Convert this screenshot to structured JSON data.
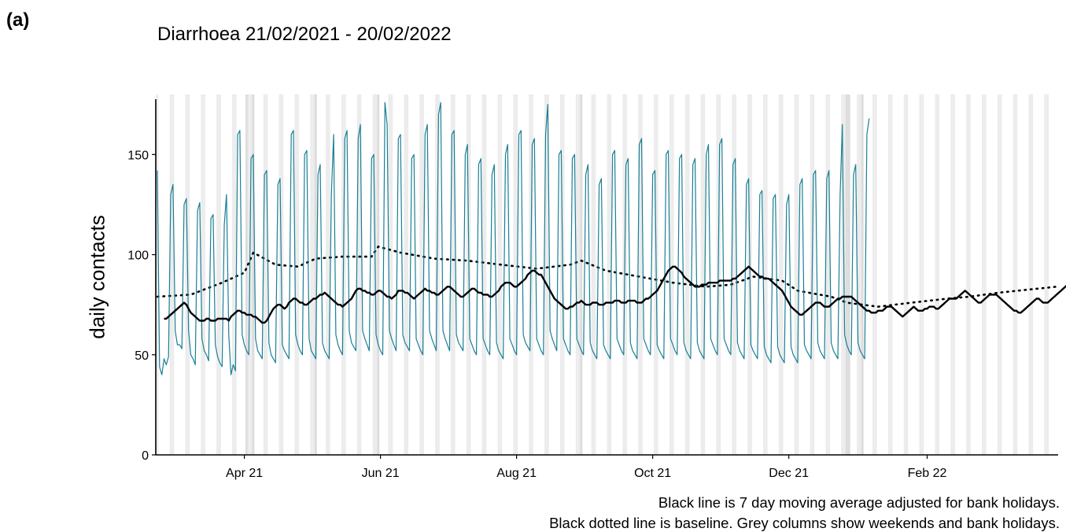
{
  "panel_label": "(a)",
  "chart_data": {
    "type": "line",
    "title": "Diarrhoea 21/02/2021 - 20/02/2022",
    "ylabel": "daily contacts",
    "xlabel": "",
    "ylim": [
      0,
      180
    ],
    "y_ticks": [
      0,
      50,
      100,
      150
    ],
    "x_range": [
      "2021-02-21",
      "2022-03-31"
    ],
    "x_ticks": [
      {
        "date": "2021-04-01",
        "label": "Apr 21"
      },
      {
        "date": "2021-06-01",
        "label": "Jun 21"
      },
      {
        "date": "2021-08-01",
        "label": "Aug 21"
      },
      {
        "date": "2021-10-01",
        "label": "Oct 21"
      },
      {
        "date": "2021-12-01",
        "label": "Dec 21"
      },
      {
        "date": "2022-02-01",
        "label": "Feb 22"
      }
    ],
    "bank_holidays": [
      "2021-04-02",
      "2021-04-05",
      "2021-05-03",
      "2021-05-31",
      "2021-08-30",
      "2021-12-27",
      "2021-12-28",
      "2022-01-03"
    ],
    "series": [
      {
        "key": "daily",
        "color": "#1a7f96",
        "start": "2021-02-21",
        "values": [
          142,
          44,
          40,
          48,
          45,
          49,
          130,
          135,
          62,
          55,
          55,
          53,
          125,
          128,
          62,
          50,
          48,
          45,
          122,
          126,
          58,
          52,
          50,
          47,
          118,
          120,
          55,
          49,
          46,
          44,
          115,
          130,
          60,
          40,
          45,
          42,
          160,
          162,
          60,
          55,
          52,
          50,
          148,
          150,
          58,
          52,
          50,
          48,
          140,
          142,
          56,
          50,
          48,
          46,
          135,
          138,
          55,
          52,
          50,
          48,
          160,
          162,
          60,
          55,
          52,
          50,
          150,
          152,
          58,
          52,
          50,
          48,
          140,
          145,
          56,
          52,
          50,
          48,
          130,
          160,
          60,
          55,
          52,
          50,
          158,
          162,
          62,
          56,
          54,
          52,
          158,
          165,
          62,
          58,
          55,
          52,
          148,
          150,
          60,
          55,
          52,
          50,
          176,
          165,
          62,
          58,
          55,
          52,
          158,
          160,
          60,
          56,
          54,
          52,
          148,
          150,
          58,
          55,
          52,
          50,
          160,
          165,
          62,
          58,
          55,
          52,
          170,
          176,
          62,
          58,
          55,
          52,
          160,
          162,
          60,
          56,
          54,
          52,
          150,
          155,
          58,
          55,
          52,
          50,
          145,
          148,
          58,
          55,
          52,
          50,
          140,
          145,
          56,
          52,
          50,
          48,
          150,
          155,
          58,
          55,
          52,
          50,
          160,
          162,
          60,
          56,
          54,
          52,
          155,
          158,
          58,
          55,
          52,
          50,
          160,
          175,
          62,
          58,
          55,
          52,
          150,
          152,
          58,
          55,
          52,
          50,
          148,
          150,
          58,
          55,
          52,
          50,
          140,
          145,
          56,
          52,
          50,
          48,
          135,
          138,
          55,
          52,
          50,
          48,
          150,
          152,
          58,
          55,
          52,
          50,
          145,
          148,
          56,
          52,
          50,
          48,
          155,
          158,
          58,
          55,
          52,
          50,
          140,
          142,
          55,
          52,
          50,
          48,
          150,
          152,
          58,
          55,
          52,
          50,
          148,
          150,
          56,
          52,
          50,
          48,
          145,
          148,
          56,
          52,
          50,
          48,
          150,
          155,
          58,
          55,
          52,
          50,
          155,
          158,
          58,
          55,
          52,
          50,
          145,
          148,
          56,
          52,
          50,
          48,
          135,
          138,
          55,
          52,
          50,
          48,
          130,
          132,
          54,
          50,
          48,
          46,
          128,
          130,
          54,
          50,
          48,
          46,
          125,
          130,
          54,
          50,
          48,
          46,
          135,
          138,
          55,
          52,
          50,
          48,
          140,
          142,
          56,
          52,
          50,
          48,
          138,
          142,
          56,
          52,
          50,
          48,
          130,
          165,
          60,
          55,
          52,
          50,
          140,
          145,
          56,
          52,
          50,
          48,
          160,
          168
        ]
      }
    ],
    "moving_average": {
      "key": "avg",
      "color": "#000000",
      "start": "2021-02-24",
      "values": [
        68,
        68,
        69,
        70,
        71,
        72,
        73,
        74,
        75,
        76,
        75,
        73,
        71,
        70,
        69,
        68,
        67,
        67,
        67,
        68,
        68,
        67,
        67,
        67,
        68,
        68,
        68,
        68,
        68,
        67,
        69,
        70,
        71,
        72,
        72,
        71,
        71,
        70,
        70,
        70,
        69,
        69,
        68,
        67,
        66,
        66,
        67,
        69,
        71,
        73,
        74,
        75,
        75,
        74,
        73,
        74,
        76,
        77,
        78,
        78,
        77,
        76,
        76,
        75,
        75,
        76,
        77,
        78,
        78,
        79,
        80,
        80,
        81,
        80,
        79,
        78,
        77,
        76,
        75,
        75,
        74,
        75,
        76,
        77,
        78,
        80,
        82,
        83,
        83,
        82,
        82,
        81,
        81,
        80,
        80,
        81,
        82,
        82,
        81,
        80,
        79,
        79,
        78,
        79,
        80,
        82,
        82,
        82,
        81,
        81,
        80,
        79,
        78,
        79,
        80,
        81,
        82,
        83,
        82,
        82,
        81,
        81,
        80,
        80,
        81,
        82,
        83,
        84,
        84,
        83,
        82,
        81,
        80,
        79,
        79,
        80,
        81,
        82,
        83,
        83,
        82,
        81,
        81,
        80,
        80,
        80,
        79,
        79,
        80,
        81,
        82,
        84,
        85,
        86,
        86,
        86,
        85,
        84,
        84,
        85,
        86,
        87,
        88,
        90,
        91,
        92,
        92,
        91,
        90,
        90,
        88,
        86,
        84,
        82,
        80,
        78,
        77,
        76,
        75,
        74,
        73,
        73,
        74,
        74,
        75,
        76,
        76,
        77,
        76,
        75,
        75,
        75,
        76,
        76,
        76,
        75,
        75,
        75,
        76,
        76,
        76,
        76,
        77,
        77,
        77,
        76,
        76,
        76,
        77,
        77,
        77,
        77,
        76,
        76,
        76,
        77,
        78,
        78,
        79,
        80,
        81,
        82,
        84,
        86,
        88,
        90,
        92,
        93,
        94,
        94,
        93,
        92,
        91,
        89,
        88,
        87,
        86,
        85,
        84,
        84,
        84,
        85,
        85,
        85,
        86,
        86,
        86,
        86,
        86,
        87,
        87,
        87,
        87,
        87,
        87,
        88,
        88,
        89,
        90,
        91,
        92,
        93,
        94,
        93,
        92,
        91,
        90,
        89,
        89,
        88,
        88,
        88,
        87,
        86,
        85,
        84,
        83,
        82,
        80,
        78,
        76,
        74,
        73,
        72,
        71,
        70,
        70,
        71,
        72,
        73,
        74,
        75,
        76,
        76,
        76,
        75,
        74,
        74,
        74,
        75,
        76,
        77,
        78,
        78,
        79,
        79,
        79,
        79,
        79,
        78,
        77,
        76,
        75,
        74,
        73,
        72,
        72,
        71,
        71,
        71,
        72,
        72,
        72,
        73,
        74,
        74,
        74,
        73,
        72,
        71,
        70,
        69,
        70,
        71,
        72,
        73,
        74,
        73,
        72,
        72,
        72,
        73,
        73,
        74,
        74,
        74,
        73,
        73,
        74,
        75,
        76,
        77,
        78,
        78,
        78,
        78,
        79,
        80,
        81,
        82,
        81,
        80,
        79,
        78,
        77,
        76,
        76,
        77,
        78,
        79,
        80,
        80,
        80,
        80,
        79,
        78,
        77,
        76,
        75,
        74,
        73,
        72,
        72,
        71,
        71,
        72,
        73,
        74,
        75,
        76,
        77,
        78,
        78,
        77,
        76,
        76,
        76,
        77,
        78,
        79,
        80,
        81,
        82,
        83,
        84,
        85,
        86,
        87,
        87,
        86,
        85,
        85,
        84,
        84,
        84,
        83,
        83,
        82,
        82,
        81,
        81,
        80,
        80,
        79,
        79,
        80,
        80,
        81,
        81,
        82,
        82,
        82,
        81,
        80,
        79,
        78,
        77,
        76,
        75,
        74,
        73,
        72,
        72,
        73,
        74,
        75,
        76,
        77,
        76,
        75,
        75,
        75,
        76,
        77,
        77,
        76,
        75,
        74,
        74,
        74,
        73,
        73,
        74,
        74,
        75,
        75,
        76,
        76,
        76,
        75,
        74,
        73,
        72,
        72,
        72,
        73,
        74,
        75,
        76,
        77,
        78,
        79,
        79,
        79,
        78,
        78,
        77,
        76,
        76,
        75,
        74,
        74,
        74,
        73,
        73,
        72,
        71,
        70,
        69,
        68,
        68,
        68,
        68,
        67,
        67,
        67,
        68,
        68,
        68,
        69,
        69,
        70,
        70,
        70,
        70,
        71,
        71,
        71,
        71,
        71,
        71,
        71,
        70,
        70,
        70,
        70,
        70,
        70,
        70,
        69,
        68,
        68,
        68,
        69,
        70,
        71,
        72,
        73,
        73,
        74,
        74,
        74,
        74,
        74,
        75,
        76,
        77,
        78,
        78,
        79,
        80,
        81,
        82,
        83,
        83,
        82,
        81,
        80,
        79,
        78,
        77,
        76,
        75,
        74,
        73,
        72,
        71,
        71,
        72,
        73,
        74,
        75,
        78
      ]
    },
    "baseline": {
      "key": "baseline",
      "color": "#000000",
      "style": "dotted",
      "start": "2021-02-21",
      "end": "2022-03-31",
      "points": [
        {
          "date": "2021-02-21",
          "value": 79
        },
        {
          "date": "2021-03-08",
          "value": 80
        },
        {
          "date": "2021-03-22",
          "value": 86
        },
        {
          "date": "2021-04-01",
          "value": 91
        },
        {
          "date": "2021-04-05",
          "value": 101
        },
        {
          "date": "2021-04-15",
          "value": 95
        },
        {
          "date": "2021-04-25",
          "value": 94
        },
        {
          "date": "2021-05-03",
          "value": 98
        },
        {
          "date": "2021-05-15",
          "value": 99
        },
        {
          "date": "2021-05-28",
          "value": 99
        },
        {
          "date": "2021-05-31",
          "value": 104
        },
        {
          "date": "2021-06-10",
          "value": 101
        },
        {
          "date": "2021-06-25",
          "value": 98
        },
        {
          "date": "2021-07-10",
          "value": 97
        },
        {
          "date": "2021-07-25",
          "value": 95
        },
        {
          "date": "2021-08-10",
          "value": 93
        },
        {
          "date": "2021-08-25",
          "value": 95
        },
        {
          "date": "2021-08-30",
          "value": 97
        },
        {
          "date": "2021-09-10",
          "value": 92
        },
        {
          "date": "2021-09-25",
          "value": 89
        },
        {
          "date": "2021-10-10",
          "value": 86
        },
        {
          "date": "2021-10-25",
          "value": 84
        },
        {
          "date": "2021-11-05",
          "value": 85
        },
        {
          "date": "2021-11-15",
          "value": 89
        },
        {
          "date": "2021-11-28",
          "value": 87
        },
        {
          "date": "2021-12-05",
          "value": 82
        },
        {
          "date": "2021-12-20",
          "value": 79
        },
        {
          "date": "2021-12-27",
          "value": 76
        },
        {
          "date": "2022-01-10",
          "value": 74
        },
        {
          "date": "2022-01-25",
          "value": 76
        },
        {
          "date": "2022-02-10",
          "value": 78
        },
        {
          "date": "2022-02-20",
          "value": 79
        },
        {
          "date": "2022-03-05",
          "value": 81
        },
        {
          "date": "2022-03-31",
          "value": 84
        }
      ]
    },
    "grid": false,
    "legend": "none"
  },
  "caption_line1": "Black line is 7 day moving average adjusted for bank holidays.",
  "caption_line2": "Black dotted line is baseline. Grey columns show weekends and bank holidays."
}
